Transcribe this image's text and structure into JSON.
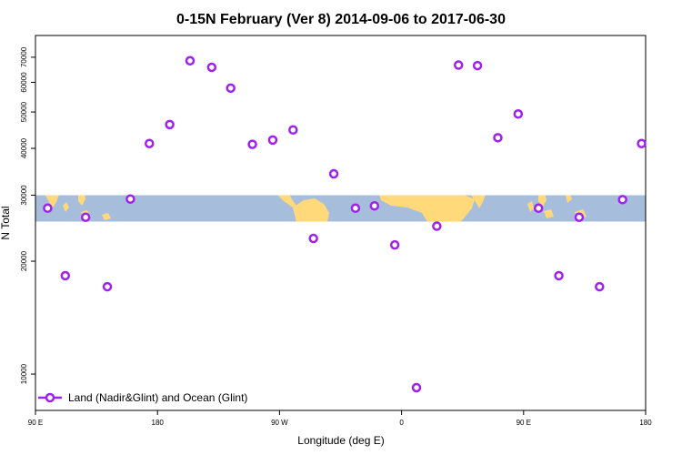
{
  "chart_data": {
    "type": "scatter",
    "title": "0-15N February (Ver 8)   2014-09-06 to 2017-06-30",
    "xlabel": "Longitude (deg E)",
    "ylabel": "N Total",
    "xlim": [
      90,
      540
    ],
    "ylim": [
      8000,
      80000
    ],
    "y_scale": "log",
    "x_ticks": [
      {
        "value": 90,
        "label": "90 E"
      },
      {
        "value": 180,
        "label": "180"
      },
      {
        "value": 270,
        "label": "90 W"
      },
      {
        "value": 360,
        "label": "0"
      },
      {
        "value": 450,
        "label": "90 E"
      },
      {
        "value": 540,
        "label": "180"
      }
    ],
    "y_ticks": [
      {
        "value": 10000,
        "label": "10000"
      },
      {
        "value": 20000,
        "label": "20000"
      },
      {
        "value": 30000,
        "label": "30000"
      },
      {
        "value": 40000,
        "label": "40000"
      },
      {
        "value": 50000,
        "label": "50000"
      },
      {
        "value": 60000,
        "label": "60000"
      },
      {
        "value": 70000,
        "label": "70000"
      }
    ],
    "map_band": {
      "lat_range": "0-15N",
      "y_from": 25500,
      "y_to": 30000
    },
    "series": [
      {
        "name": "Land (Nadir&Glint) and Ocean (Glint)",
        "color": "#a020f0",
        "points": [
          {
            "x": 99,
            "y": 27700
          },
          {
            "x": 112,
            "y": 18300
          },
          {
            "x": 127,
            "y": 26200
          },
          {
            "x": 143,
            "y": 17100
          },
          {
            "x": 160,
            "y": 29300
          },
          {
            "x": 174,
            "y": 41200
          },
          {
            "x": 189,
            "y": 46300
          },
          {
            "x": 204,
            "y": 68500
          },
          {
            "x": 220,
            "y": 65800
          },
          {
            "x": 234,
            "y": 57900
          },
          {
            "x": 250,
            "y": 41000
          },
          {
            "x": 265,
            "y": 42100
          },
          {
            "x": 280,
            "y": 44800
          },
          {
            "x": 295,
            "y": 23000
          },
          {
            "x": 310,
            "y": 34200
          },
          {
            "x": 326,
            "y": 27700
          },
          {
            "x": 340,
            "y": 28100
          },
          {
            "x": 355,
            "y": 22100
          },
          {
            "x": 371,
            "y": 9200
          },
          {
            "x": 386,
            "y": 24800
          },
          {
            "x": 402,
            "y": 66700
          },
          {
            "x": 416,
            "y": 66500
          },
          {
            "x": 431,
            "y": 42700
          },
          {
            "x": 446,
            "y": 49400
          },
          {
            "x": 461,
            "y": 27700
          },
          {
            "x": 476,
            "y": 18300
          },
          {
            "x": 491,
            "y": 26200
          },
          {
            "x": 506,
            "y": 17100
          },
          {
            "x": 523,
            "y": 29200
          },
          {
            "x": 537,
            "y": 41200
          }
        ]
      }
    ],
    "legend": "bottom-left",
    "grid": false
  }
}
